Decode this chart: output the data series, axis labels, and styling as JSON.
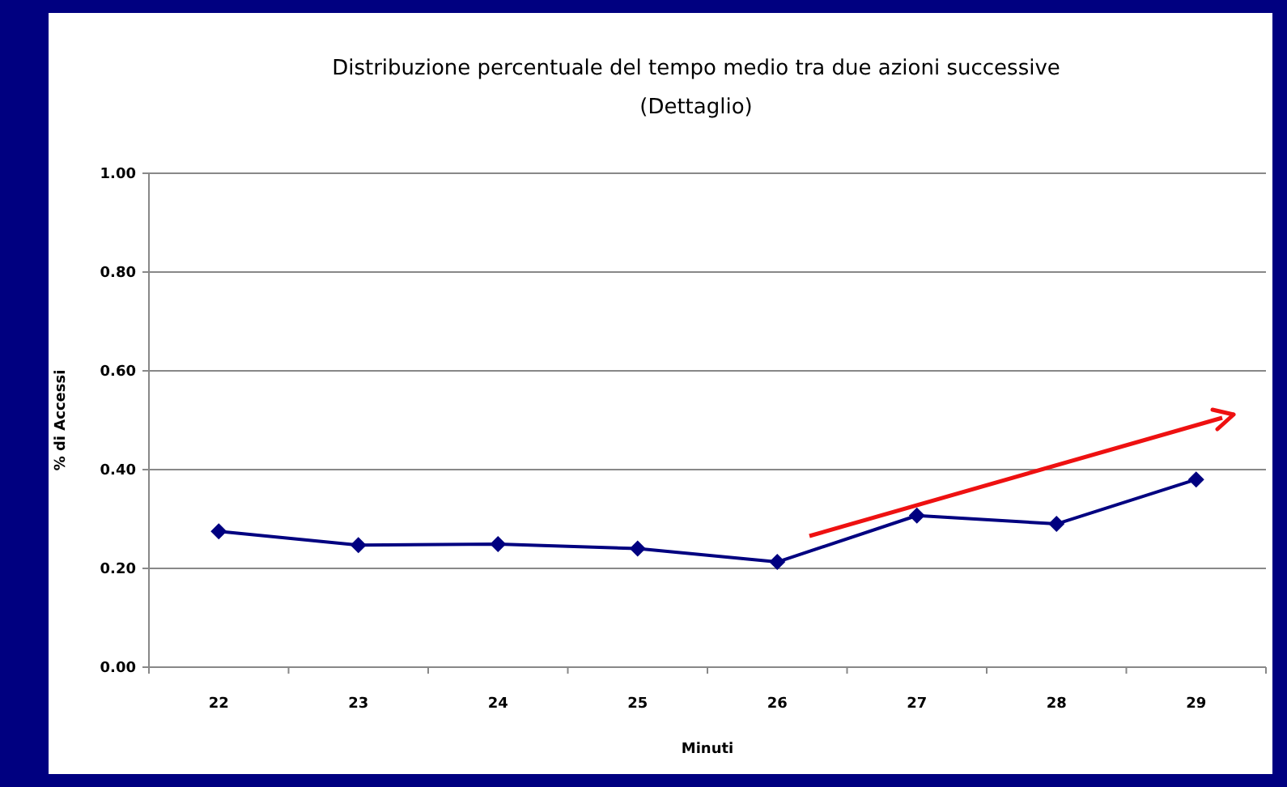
{
  "chart_data": {
    "type": "line",
    "title": "Distribuzione percentuale del tempo medio tra due azioni successive",
    "subtitle": "(Dettaglio)",
    "xlabel": "Minuti",
    "ylabel": "% di Accessi",
    "categories": [
      "22",
      "23",
      "24",
      "25",
      "26",
      "27",
      "28",
      "29"
    ],
    "series": [
      {
        "color": "#000080",
        "values": [
          0.275,
          0.247,
          0.249,
          0.24,
          0.213,
          0.307,
          0.29,
          0.38
        ]
      }
    ],
    "ylim": [
      0,
      1
    ],
    "yticks": [
      {
        "value": 0,
        "label": "0.00"
      },
      {
        "value": 0.2,
        "label": "0.20"
      },
      {
        "value": 0.4,
        "label": "0.40"
      },
      {
        "value": 0.6,
        "label": "0.60"
      },
      {
        "value": 0.8,
        "label": "0.80"
      },
      {
        "value": 1,
        "label": "1.00"
      }
    ],
    "grid": "y",
    "marker": "diamond"
  }
}
